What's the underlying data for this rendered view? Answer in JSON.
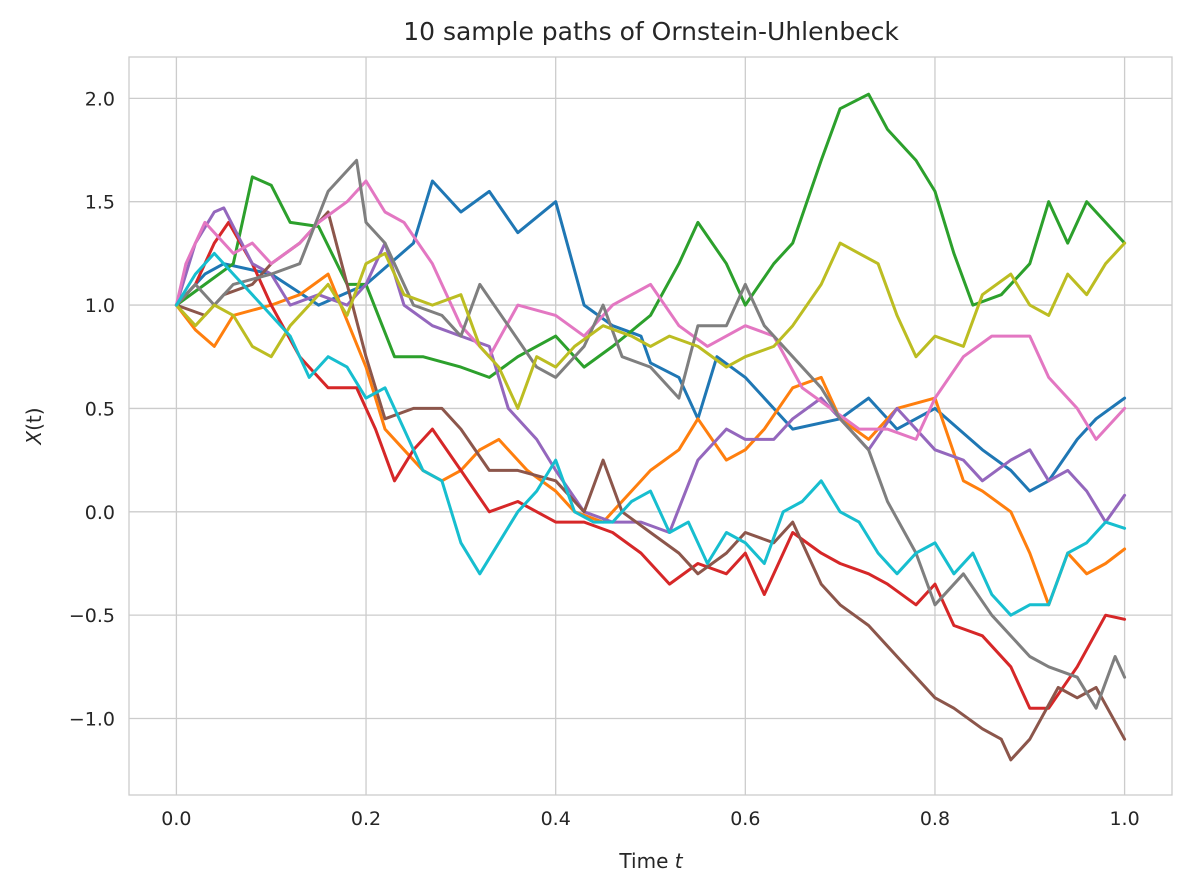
{
  "chart_data": {
    "type": "line",
    "title": "10 sample paths of Ornstein-Uhlenbeck",
    "xlabel": {
      "prefix": "Time ",
      "var": "t"
    },
    "ylabel": {
      "var": "X",
      "suffix": "(t)"
    },
    "xlim": [
      -0.05,
      1.05
    ],
    "ylim": [
      -1.37,
      2.2
    ],
    "xticks": [
      0.0,
      0.2,
      0.4,
      0.6,
      0.8,
      1.0
    ],
    "xtick_labels": [
      "0.0",
      "0.2",
      "0.4",
      "0.6",
      "0.8",
      "1.0"
    ],
    "yticks": [
      -1.0,
      -0.5,
      0.0,
      0.5,
      1.0,
      1.5,
      2.0
    ],
    "ytick_labels": [
      "−1.0",
      "−0.5",
      "0.0",
      "0.5",
      "1.0",
      "1.5",
      "2.0"
    ],
    "grid": true,
    "legend": "none",
    "series": [
      {
        "color": "#1f77b4",
        "x": [
          0.0,
          0.03,
          0.05,
          0.1,
          0.15,
          0.2,
          0.25,
          0.27,
          0.3,
          0.33,
          0.36,
          0.4,
          0.43,
          0.46,
          0.49,
          0.5,
          0.53,
          0.55,
          0.57,
          0.6,
          0.65,
          0.7,
          0.73,
          0.76,
          0.8,
          0.85,
          0.88,
          0.9,
          0.92,
          0.95,
          0.97,
          1.0
        ],
        "y": [
          1.0,
          1.15,
          1.2,
          1.15,
          1.0,
          1.1,
          1.3,
          1.6,
          1.45,
          1.55,
          1.35,
          1.5,
          1.0,
          0.9,
          0.85,
          0.72,
          0.65,
          0.45,
          0.75,
          0.65,
          0.4,
          0.45,
          0.55,
          0.4,
          0.5,
          0.3,
          0.2,
          0.1,
          0.15,
          0.35,
          0.45,
          0.55
        ]
      },
      {
        "color": "#ff7f0e",
        "x": [
          0.0,
          0.02,
          0.04,
          0.06,
          0.1,
          0.13,
          0.16,
          0.2,
          0.22,
          0.24,
          0.26,
          0.28,
          0.3,
          0.32,
          0.34,
          0.37,
          0.4,
          0.42,
          0.45,
          0.48,
          0.5,
          0.53,
          0.55,
          0.58,
          0.6,
          0.62,
          0.65,
          0.68,
          0.7,
          0.73,
          0.76,
          0.8,
          0.83,
          0.85,
          0.88,
          0.9,
          0.92,
          0.94,
          0.96,
          0.98,
          1.0
        ],
        "y": [
          1.0,
          0.88,
          0.8,
          0.95,
          1.0,
          1.05,
          1.15,
          0.7,
          0.4,
          0.3,
          0.2,
          0.15,
          0.2,
          0.3,
          0.35,
          0.2,
          0.1,
          0.0,
          -0.05,
          0.1,
          0.2,
          0.3,
          0.45,
          0.25,
          0.3,
          0.4,
          0.6,
          0.65,
          0.45,
          0.35,
          0.5,
          0.55,
          0.15,
          0.1,
          0.0,
          -0.2,
          -0.45,
          -0.2,
          -0.3,
          -0.25,
          -0.18
        ]
      },
      {
        "color": "#2ca02c",
        "x": [
          0.0,
          0.03,
          0.06,
          0.08,
          0.1,
          0.12,
          0.15,
          0.18,
          0.2,
          0.23,
          0.26,
          0.3,
          0.33,
          0.36,
          0.4,
          0.43,
          0.46,
          0.5,
          0.53,
          0.55,
          0.58,
          0.6,
          0.63,
          0.65,
          0.68,
          0.7,
          0.73,
          0.75,
          0.78,
          0.8,
          0.82,
          0.84,
          0.87,
          0.9,
          0.92,
          0.94,
          0.96,
          0.98,
          1.0
        ],
        "y": [
          1.0,
          1.1,
          1.2,
          1.62,
          1.58,
          1.4,
          1.38,
          1.1,
          1.1,
          0.75,
          0.75,
          0.7,
          0.65,
          0.75,
          0.85,
          0.7,
          0.8,
          0.95,
          1.2,
          1.4,
          1.2,
          1.0,
          1.2,
          1.3,
          1.7,
          1.95,
          2.02,
          1.85,
          1.7,
          1.55,
          1.25,
          1.0,
          1.05,
          1.2,
          1.5,
          1.3,
          1.5,
          1.4,
          1.3
        ]
      },
      {
        "color": "#d62728",
        "x": [
          0.0,
          0.02,
          0.04,
          0.055,
          0.08,
          0.1,
          0.13,
          0.16,
          0.19,
          0.21,
          0.23,
          0.25,
          0.27,
          0.3,
          0.33,
          0.36,
          0.4,
          0.43,
          0.46,
          0.49,
          0.52,
          0.55,
          0.58,
          0.6,
          0.62,
          0.65,
          0.68,
          0.7,
          0.73,
          0.75,
          0.78,
          0.8,
          0.82,
          0.85,
          0.88,
          0.9,
          0.92,
          0.95,
          0.98,
          1.0
        ],
        "y": [
          1.0,
          1.1,
          1.3,
          1.4,
          1.2,
          1.0,
          0.75,
          0.6,
          0.6,
          0.4,
          0.15,
          0.3,
          0.4,
          0.2,
          0.0,
          0.05,
          -0.05,
          -0.05,
          -0.1,
          -0.2,
          -0.35,
          -0.25,
          -0.3,
          -0.2,
          -0.4,
          -0.1,
          -0.2,
          -0.25,
          -0.3,
          -0.35,
          -0.45,
          -0.35,
          -0.55,
          -0.6,
          -0.75,
          -0.95,
          -0.95,
          -0.75,
          -0.5,
          -0.52
        ]
      },
      {
        "color": "#9467bd",
        "x": [
          0.0,
          0.02,
          0.04,
          0.05,
          0.08,
          0.1,
          0.12,
          0.15,
          0.18,
          0.2,
          0.22,
          0.24,
          0.27,
          0.3,
          0.33,
          0.35,
          0.38,
          0.4,
          0.43,
          0.46,
          0.49,
          0.52,
          0.55,
          0.58,
          0.6,
          0.63,
          0.65,
          0.68,
          0.7,
          0.73,
          0.76,
          0.8,
          0.83,
          0.85,
          0.88,
          0.9,
          0.92,
          0.94,
          0.96,
          0.98,
          1.0
        ],
        "y": [
          1.0,
          1.3,
          1.45,
          1.47,
          1.2,
          1.15,
          1.0,
          1.05,
          1.0,
          1.1,
          1.3,
          1.0,
          0.9,
          0.85,
          0.8,
          0.5,
          0.35,
          0.2,
          0.0,
          -0.05,
          -0.05,
          -0.1,
          0.25,
          0.4,
          0.35,
          0.35,
          0.45,
          0.55,
          0.45,
          0.3,
          0.5,
          0.3,
          0.25,
          0.15,
          0.25,
          0.3,
          0.15,
          0.2,
          0.1,
          -0.05,
          0.08
        ]
      },
      {
        "color": "#8c564b",
        "x": [
          0.0,
          0.03,
          0.05,
          0.08,
          0.1,
          0.13,
          0.16,
          0.18,
          0.2,
          0.22,
          0.25,
          0.28,
          0.3,
          0.33,
          0.36,
          0.4,
          0.43,
          0.45,
          0.47,
          0.5,
          0.53,
          0.55,
          0.58,
          0.6,
          0.63,
          0.65,
          0.68,
          0.7,
          0.73,
          0.76,
          0.8,
          0.82,
          0.85,
          0.87,
          0.88,
          0.9,
          0.93,
          0.95,
          0.97,
          1.0
        ],
        "y": [
          1.0,
          0.95,
          1.05,
          1.1,
          1.2,
          1.3,
          1.45,
          1.1,
          0.75,
          0.45,
          0.5,
          0.5,
          0.4,
          0.2,
          0.2,
          0.15,
          0.0,
          0.25,
          0.0,
          -0.1,
          -0.2,
          -0.3,
          -0.2,
          -0.1,
          -0.15,
          -0.05,
          -0.35,
          -0.45,
          -0.55,
          -0.7,
          -0.9,
          -0.95,
          -1.05,
          -1.1,
          -1.2,
          -1.1,
          -0.85,
          -0.9,
          -0.85,
          -1.1
        ]
      },
      {
        "color": "#e377c2",
        "x": [
          0.0,
          0.01,
          0.03,
          0.06,
          0.08,
          0.1,
          0.13,
          0.15,
          0.18,
          0.2,
          0.22,
          0.24,
          0.27,
          0.3,
          0.33,
          0.36,
          0.4,
          0.43,
          0.46,
          0.5,
          0.53,
          0.56,
          0.6,
          0.63,
          0.66,
          0.69,
          0.72,
          0.75,
          0.78,
          0.8,
          0.83,
          0.86,
          0.9,
          0.92,
          0.95,
          0.97,
          1.0
        ],
        "y": [
          1.0,
          1.2,
          1.4,
          1.25,
          1.3,
          1.2,
          1.3,
          1.4,
          1.5,
          1.6,
          1.45,
          1.4,
          1.2,
          0.9,
          0.75,
          1.0,
          0.95,
          0.85,
          1.0,
          1.1,
          0.9,
          0.8,
          0.9,
          0.85,
          0.6,
          0.5,
          0.4,
          0.4,
          0.35,
          0.55,
          0.75,
          0.85,
          0.85,
          0.65,
          0.5,
          0.35,
          0.5
        ]
      },
      {
        "color": "#7f7f7f",
        "x": [
          0.0,
          0.02,
          0.04,
          0.06,
          0.1,
          0.13,
          0.16,
          0.19,
          0.2,
          0.22,
          0.25,
          0.28,
          0.3,
          0.32,
          0.35,
          0.38,
          0.4,
          0.43,
          0.45,
          0.47,
          0.5,
          0.53,
          0.55,
          0.58,
          0.6,
          0.62,
          0.65,
          0.68,
          0.7,
          0.73,
          0.75,
          0.78,
          0.8,
          0.83,
          0.86,
          0.9,
          0.92,
          0.95,
          0.97,
          0.99,
          1.0
        ],
        "y": [
          1.0,
          1.1,
          1.0,
          1.1,
          1.15,
          1.2,
          1.55,
          1.7,
          1.4,
          1.3,
          1.0,
          0.95,
          0.85,
          1.1,
          0.9,
          0.7,
          0.65,
          0.8,
          1.0,
          0.75,
          0.7,
          0.55,
          0.9,
          0.9,
          1.1,
          0.9,
          0.75,
          0.6,
          0.45,
          0.3,
          0.05,
          -0.2,
          -0.45,
          -0.3,
          -0.5,
          -0.7,
          -0.75,
          -0.8,
          -0.95,
          -0.7,
          -0.8
        ]
      },
      {
        "color": "#bcbd22",
        "x": [
          0.0,
          0.02,
          0.04,
          0.06,
          0.08,
          0.1,
          0.12,
          0.14,
          0.16,
          0.18,
          0.2,
          0.22,
          0.24,
          0.27,
          0.3,
          0.32,
          0.34,
          0.36,
          0.38,
          0.4,
          0.42,
          0.45,
          0.48,
          0.5,
          0.52,
          0.55,
          0.58,
          0.6,
          0.63,
          0.65,
          0.68,
          0.7,
          0.72,
          0.74,
          0.76,
          0.78,
          0.8,
          0.83,
          0.85,
          0.88,
          0.9,
          0.92,
          0.94,
          0.96,
          0.98,
          1.0
        ],
        "y": [
          1.0,
          0.9,
          1.0,
          0.95,
          0.8,
          0.75,
          0.9,
          1.0,
          1.1,
          0.95,
          1.2,
          1.25,
          1.05,
          1.0,
          1.05,
          0.8,
          0.7,
          0.5,
          0.75,
          0.7,
          0.8,
          0.9,
          0.85,
          0.8,
          0.85,
          0.8,
          0.7,
          0.75,
          0.8,
          0.9,
          1.1,
          1.3,
          1.25,
          1.2,
          0.95,
          0.75,
          0.85,
          0.8,
          1.05,
          1.15,
          1.0,
          0.95,
          1.15,
          1.05,
          1.2,
          1.3
        ]
      },
      {
        "color": "#17becf",
        "x": [
          0.0,
          0.02,
          0.04,
          0.06,
          0.08,
          0.1,
          0.12,
          0.14,
          0.16,
          0.18,
          0.2,
          0.22,
          0.24,
          0.26,
          0.28,
          0.3,
          0.32,
          0.34,
          0.36,
          0.38,
          0.4,
          0.42,
          0.44,
          0.46,
          0.48,
          0.5,
          0.52,
          0.54,
          0.56,
          0.58,
          0.6,
          0.62,
          0.64,
          0.66,
          0.68,
          0.7,
          0.72,
          0.74,
          0.76,
          0.78,
          0.8,
          0.82,
          0.84,
          0.86,
          0.88,
          0.9,
          0.92,
          0.94,
          0.96,
          0.98,
          1.0
        ],
        "y": [
          1.0,
          1.15,
          1.25,
          1.15,
          1.05,
          0.95,
          0.85,
          0.65,
          0.75,
          0.7,
          0.55,
          0.6,
          0.4,
          0.2,
          0.15,
          -0.15,
          -0.3,
          -0.15,
          0.0,
          0.1,
          0.25,
          0.0,
          -0.05,
          -0.05,
          0.05,
          0.1,
          -0.1,
          -0.05,
          -0.25,
          -0.1,
          -0.15,
          -0.25,
          0.0,
          0.05,
          0.15,
          0.0,
          -0.05,
          -0.2,
          -0.3,
          -0.2,
          -0.15,
          -0.3,
          -0.2,
          -0.4,
          -0.5,
          -0.45,
          -0.45,
          -0.2,
          -0.15,
          -0.05,
          -0.08
        ]
      }
    ]
  }
}
